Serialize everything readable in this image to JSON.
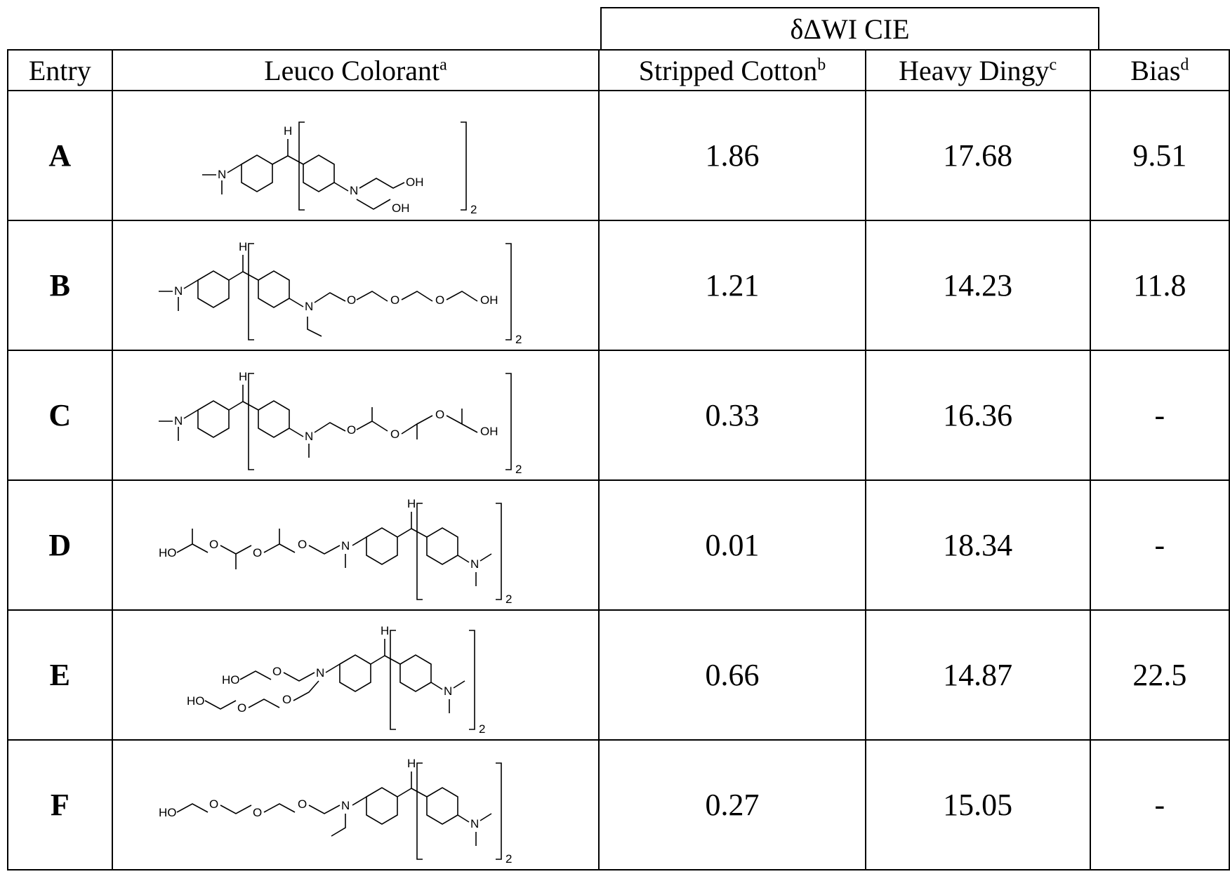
{
  "group_header": "δΔWI CIE",
  "headers": {
    "entry": "Entry",
    "colorant": "Leuco Colorant",
    "colorant_sup": "a",
    "stripped": "Stripped Cotton",
    "stripped_sup": "b",
    "dingy": "Heavy Dingy",
    "dingy_sup": "c",
    "bias": "Bias",
    "bias_sup": "d"
  },
  "structure_labels": {
    "H": "H",
    "N": "N",
    "O": "O",
    "OH": "OH",
    "HO": "HO",
    "subscript": "2"
  },
  "rows": [
    {
      "entry": "A",
      "stripped": "1.86",
      "dingy": "17.68",
      "bias": "9.51"
    },
    {
      "entry": "B",
      "stripped": "1.21",
      "dingy": "14.23",
      "bias": "11.8"
    },
    {
      "entry": "C",
      "stripped": "0.33",
      "dingy": "16.36",
      "bias": "-"
    },
    {
      "entry": "D",
      "stripped": "0.01",
      "dingy": "18.34",
      "bias": "-"
    },
    {
      "entry": "E",
      "stripped": "0.66",
      "dingy": "14.87",
      "bias": "22.5"
    },
    {
      "entry": "F",
      "stripped": "0.27",
      "dingy": "15.05",
      "bias": "-"
    }
  ]
}
